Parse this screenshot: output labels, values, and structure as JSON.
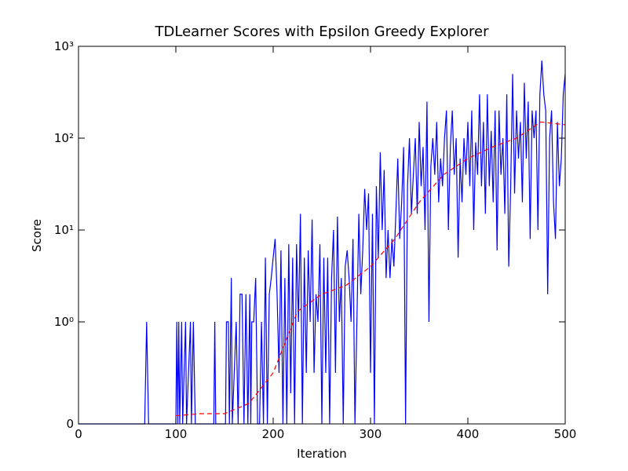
{
  "chart_data": {
    "type": "line",
    "title": "TDLearner Scores with Epsilon Greedy Explorer",
    "x_label": "Iteration",
    "y_label": "Score",
    "yscale": "symlog",
    "linthresh": 1,
    "xlim": [
      0,
      500
    ],
    "xticks": [
      0,
      100,
      200,
      300,
      400,
      500
    ],
    "ylim": [
      0,
      1000
    ],
    "yticks": [
      0,
      {
        "value": 1,
        "label": "10⁰"
      },
      {
        "value": 10,
        "label": "10¹"
      },
      {
        "value": 100,
        "label": "10²"
      },
      {
        "value": 1000,
        "label": "10³"
      }
    ],
    "series": [
      {
        "color": "#0000ff",
        "dash": false,
        "x": [
          0,
          68,
          70,
          72,
          100,
          101,
          102,
          103,
          104,
          106,
          107,
          110,
          111,
          115,
          116,
          118,
          120,
          139,
          140,
          141,
          151,
          152,
          154,
          155,
          157,
          158,
          162,
          164,
          166,
          168,
          170,
          172,
          174,
          176,
          177,
          178,
          180,
          182,
          184,
          186,
          188,
          190,
          192,
          194,
          196,
          198,
          200,
          202,
          204,
          206,
          208,
          210,
          212,
          214,
          216,
          218,
          220,
          222,
          224,
          226,
          228,
          230,
          232,
          234,
          236,
          238,
          240,
          242,
          244,
          246,
          248,
          250,
          252,
          254,
          256,
          258,
          260,
          262,
          264,
          266,
          268,
          270,
          272,
          274,
          276,
          278,
          280,
          282,
          284,
          286,
          288,
          290,
          292,
          294,
          296,
          298,
          300,
          302,
          304,
          306,
          308,
          310,
          312,
          314,
          316,
          318,
          320,
          322,
          324,
          326,
          328,
          330,
          332,
          334,
          336,
          338,
          340,
          342,
          344,
          346,
          348,
          350,
          352,
          354,
          356,
          358,
          360,
          362,
          364,
          366,
          368,
          370,
          372,
          374,
          376,
          378,
          380,
          382,
          384,
          386,
          388,
          390,
          392,
          394,
          396,
          398,
          400,
          402,
          404,
          406,
          408,
          410,
          412,
          414,
          416,
          418,
          420,
          422,
          424,
          426,
          428,
          430,
          432,
          434,
          436,
          438,
          440,
          442,
          444,
          446,
          448,
          450,
          452,
          454,
          456,
          458,
          460,
          462,
          464,
          466,
          468,
          470,
          472,
          474,
          476,
          478,
          480,
          482,
          484,
          486,
          488,
          490,
          492,
          494,
          496,
          498,
          500
        ],
        "values": [
          0,
          0,
          1,
          0,
          0,
          1,
          0,
          1,
          0,
          1,
          0,
          1,
          0,
          1,
          0,
          1,
          0,
          0,
          1,
          0,
          0,
          1,
          1,
          0,
          3,
          0,
          1,
          0,
          2,
          2,
          0,
          2,
          0,
          2,
          0,
          1,
          1,
          3,
          0,
          0,
          1,
          0,
          5,
          0,
          2,
          3,
          5,
          8,
          2,
          0.5,
          6,
          0,
          3,
          0,
          7,
          0.3,
          5,
          0,
          7,
          1,
          15,
          0,
          5,
          0.5,
          6,
          1,
          13,
          0.5,
          2,
          1,
          7,
          0,
          5,
          0.5,
          5,
          0,
          3,
          10,
          0.5,
          14,
          1,
          3,
          0,
          4,
          6,
          3,
          1,
          8,
          0,
          1,
          15,
          2,
          6,
          28,
          10,
          25,
          0.5,
          15,
          0,
          30,
          5,
          70,
          10,
          45,
          3,
          10,
          3,
          8,
          4,
          15,
          60,
          8,
          20,
          80,
          0,
          30,
          100,
          15,
          40,
          100,
          15,
          150,
          30,
          80,
          10,
          250,
          1,
          50,
          100,
          40,
          150,
          20,
          60,
          30,
          100,
          200,
          10,
          80,
          200,
          40,
          100,
          5,
          60,
          20,
          100,
          40,
          150,
          30,
          200,
          10,
          90,
          40,
          300,
          30,
          150,
          15,
          300,
          30,
          120,
          20,
          200,
          6,
          200,
          40,
          100,
          15,
          300,
          4,
          30,
          500,
          25,
          200,
          60,
          150,
          20,
          400,
          60,
          250,
          8,
          200,
          100,
          200,
          10,
          300,
          700,
          300,
          200,
          2,
          100,
          200,
          20,
          8,
          150,
          30,
          60,
          300,
          500
        ]
      },
      {
        "color": "#ff0000",
        "dash": true,
        "x": [
          100,
          125,
          150,
          175,
          200,
          225,
          250,
          275,
          300,
          325,
          350,
          375,
          400,
          425,
          450,
          475,
          500
        ],
        "values": [
          0.08,
          0.1,
          0.1,
          0.2,
          0.5,
          1.3,
          2,
          2.5,
          4,
          8,
          20,
          40,
          60,
          80,
          100,
          150,
          140
        ]
      }
    ]
  }
}
